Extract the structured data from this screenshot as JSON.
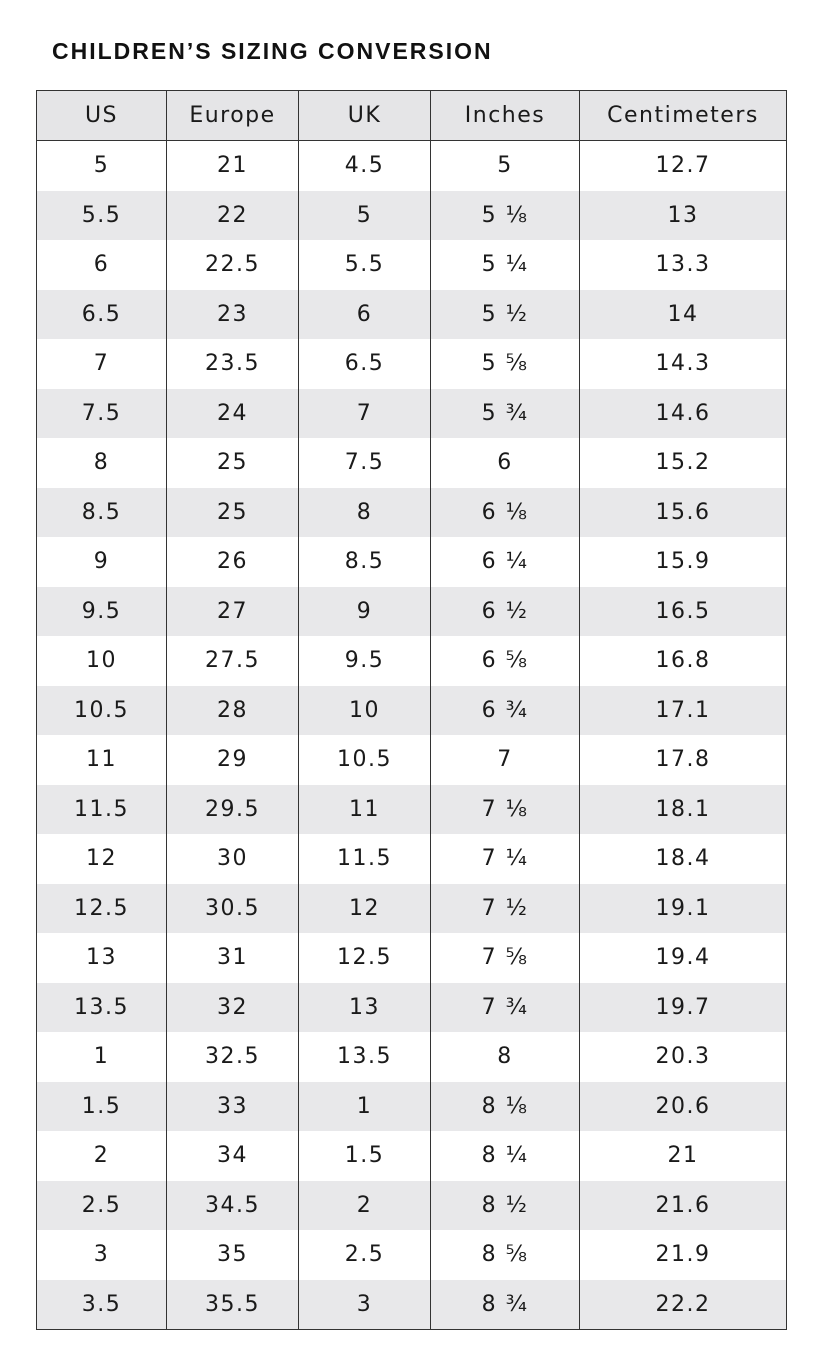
{
  "header": {
    "title": "CHILDREN’S SIZING CONVERSION"
  },
  "table": {
    "columns": [
      "US",
      "Europe",
      "UK",
      "Inches",
      "Centimeters"
    ],
    "rows": [
      [
        "5",
        "21",
        "4.5",
        "5",
        "12.7"
      ],
      [
        "5.5",
        "22",
        "5",
        "5 ⅛",
        "13"
      ],
      [
        "6",
        "22.5",
        "5.5",
        "5 ¼",
        "13.3"
      ],
      [
        "6.5",
        "23",
        "6",
        "5 ½",
        "14"
      ],
      [
        "7",
        "23.5",
        "6.5",
        "5 ⅝",
        "14.3"
      ],
      [
        "7.5",
        "24",
        "7",
        "5 ¾",
        "14.6"
      ],
      [
        "8",
        "25",
        "7.5",
        "6",
        "15.2"
      ],
      [
        "8.5",
        "25",
        "8",
        "6 ⅛",
        "15.6"
      ],
      [
        "9",
        "26",
        "8.5",
        "6 ¼",
        "15.9"
      ],
      [
        "9.5",
        "27",
        "9",
        "6 ½",
        "16.5"
      ],
      [
        "10",
        "27.5",
        "9.5",
        "6 ⅝",
        "16.8"
      ],
      [
        "10.5",
        "28",
        "10",
        "6 ¾",
        "17.1"
      ],
      [
        "11",
        "29",
        "10.5",
        "7",
        "17.8"
      ],
      [
        "11.5",
        "29.5",
        "11",
        "7 ⅛",
        "18.1"
      ],
      [
        "12",
        "30",
        "11.5",
        "7 ¼",
        "18.4"
      ],
      [
        "12.5",
        "30.5",
        "12",
        "7 ½",
        "19.1"
      ],
      [
        "13",
        "31",
        "12.5",
        "7 ⅝",
        "19.4"
      ],
      [
        "13.5",
        "32",
        "13",
        "7 ¾",
        "19.7"
      ],
      [
        "1",
        "32.5",
        "13.5",
        "8",
        "20.3"
      ],
      [
        "1.5",
        "33",
        "1",
        "8 ⅛",
        "20.6"
      ],
      [
        "2",
        "34",
        "1.5",
        "8 ¼",
        "21"
      ],
      [
        "2.5",
        "34.5",
        "2",
        "8 ½",
        "21.6"
      ],
      [
        "3",
        "35",
        "2.5",
        "8 ⅝",
        "21.9"
      ],
      [
        "3.5",
        "35.5",
        "3",
        "8 ¾",
        "22.2"
      ]
    ]
  }
}
